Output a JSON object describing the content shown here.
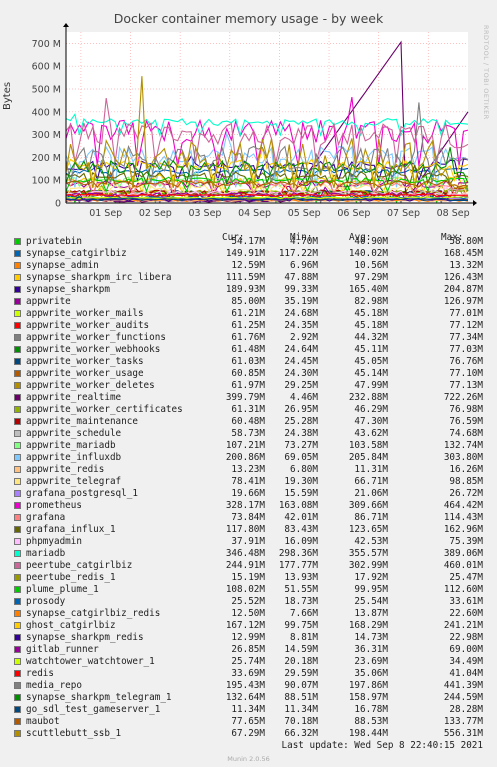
{
  "chart_data": {
    "type": "line",
    "title": "Docker container memory usage - by week",
    "ylabel": "Bytes",
    "ylim": [
      0,
      750000000
    ],
    "yticks": [
      "0",
      "100 M",
      "200 M",
      "300 M",
      "400 M",
      "500 M",
      "600 M",
      "700 M"
    ],
    "xticks": [
      "01 Sep",
      "02 Sep",
      "03 Sep",
      "04 Sep",
      "05 Sep",
      "06 Sep",
      "07 Sep",
      "08 Sep"
    ],
    "grid": true,
    "columns": [
      "Cur:",
      "Min:",
      "Avg:",
      "Max:"
    ],
    "series": [
      {
        "name": "privatebin",
        "color": "#00cc00",
        "cur": "54.17M",
        "min": "4.70M",
        "avg": "40.90M",
        "max": "58.80M"
      },
      {
        "name": "synapse_catgirlbiz",
        "color": "#0066b3",
        "cur": "149.91M",
        "min": "117.22M",
        "avg": "140.02M",
        "max": "168.45M"
      },
      {
        "name": "synapse_admin",
        "color": "#ff8000",
        "cur": "12.59M",
        "min": "6.96M",
        "avg": "10.56M",
        "max": "13.32M"
      },
      {
        "name": "synapse_sharkpm_irc_libera",
        "color": "#ffcc00",
        "cur": "111.59M",
        "min": "47.88M",
        "avg": "97.29M",
        "max": "126.43M"
      },
      {
        "name": "synapse_sharkpm",
        "color": "#330099",
        "cur": "189.93M",
        "min": "99.33M",
        "avg": "165.40M",
        "max": "204.87M"
      },
      {
        "name": "appwrite",
        "color": "#990099",
        "cur": "85.00M",
        "min": "35.19M",
        "avg": "82.98M",
        "max": "126.97M"
      },
      {
        "name": "appwrite_worker_mails",
        "color": "#ccff00",
        "cur": "61.21M",
        "min": "24.68M",
        "avg": "45.18M",
        "max": "77.01M"
      },
      {
        "name": "appwrite_worker_audits",
        "color": "#ff0000",
        "cur": "61.25M",
        "min": "24.35M",
        "avg": "45.18M",
        "max": "77.12M"
      },
      {
        "name": "appwrite_worker_functions",
        "color": "#808080",
        "cur": "61.76M",
        "min": "2.92M",
        "avg": "44.32M",
        "max": "77.34M"
      },
      {
        "name": "appwrite_worker_webhooks",
        "color": "#008f00",
        "cur": "61.48M",
        "min": "24.64M",
        "avg": "45.11M",
        "max": "77.03M"
      },
      {
        "name": "appwrite_worker_tasks",
        "color": "#00487d",
        "cur": "61.03M",
        "min": "24.45M",
        "avg": "45.05M",
        "max": "76.76M"
      },
      {
        "name": "appwrite_worker_usage",
        "color": "#b35a00",
        "cur": "60.85M",
        "min": "24.30M",
        "avg": "45.14M",
        "max": "77.10M"
      },
      {
        "name": "appwrite_worker_deletes",
        "color": "#b38f00",
        "cur": "61.97M",
        "min": "29.25M",
        "avg": "47.99M",
        "max": "77.13M"
      },
      {
        "name": "appwrite_realtime",
        "color": "#6b006b",
        "cur": "399.79M",
        "min": "4.46M",
        "avg": "232.88M",
        "max": "722.26M"
      },
      {
        "name": "appwrite_worker_certificates",
        "color": "#8fb300",
        "cur": "61.31M",
        "min": "26.95M",
        "avg": "46.29M",
        "max": "76.98M"
      },
      {
        "name": "appwrite_maintenance",
        "color": "#b30000",
        "cur": "60.48M",
        "min": "25.28M",
        "avg": "47.30M",
        "max": "76.59M"
      },
      {
        "name": "appwrite_schedule",
        "color": "#bebebe",
        "cur": "58.73M",
        "min": "24.38M",
        "avg": "43.62M",
        "max": "74.68M"
      },
      {
        "name": "appwrite_mariadb",
        "color": "#80ff80",
        "cur": "107.21M",
        "min": "73.27M",
        "avg": "103.58M",
        "max": "132.74M"
      },
      {
        "name": "appwrite_influxdb",
        "color": "#80c9ff",
        "cur": "200.86M",
        "min": "69.05M",
        "avg": "205.84M",
        "max": "303.80M"
      },
      {
        "name": "appwrite_redis",
        "color": "#ffc080",
        "cur": "13.23M",
        "min": "6.80M",
        "avg": "11.31M",
        "max": "16.26M"
      },
      {
        "name": "appwrite_telegraf",
        "color": "#ffe680",
        "cur": "78.41M",
        "min": "19.30M",
        "avg": "66.71M",
        "max": "98.85M"
      },
      {
        "name": "grafana_postgresql_1",
        "color": "#aa80ff",
        "cur": "19.66M",
        "min": "15.59M",
        "avg": "21.06M",
        "max": "26.72M"
      },
      {
        "name": "prometheus",
        "color": "#ee00cc",
        "cur": "328.17M",
        "min": "163.08M",
        "avg": "309.66M",
        "max": "464.42M"
      },
      {
        "name": "grafana",
        "color": "#ff8080",
        "cur": "73.84M",
        "min": "42.01M",
        "avg": "86.71M",
        "max": "114.43M"
      },
      {
        "name": "grafana_influx_1",
        "color": "#666600",
        "cur": "117.80M",
        "min": "83.43M",
        "avg": "123.65M",
        "max": "162.96M"
      },
      {
        "name": "phpmyadmin",
        "color": "#ffbfff",
        "cur": "37.91M",
        "min": "16.09M",
        "avg": "42.53M",
        "max": "75.39M"
      },
      {
        "name": "mariadb",
        "color": "#00ffcc",
        "cur": "346.48M",
        "min": "298.36M",
        "avg": "355.57M",
        "max": "389.06M"
      },
      {
        "name": "peertube_catgirlbiz",
        "color": "#cc6699",
        "cur": "244.91M",
        "min": "177.77M",
        "avg": "302.99M",
        "max": "460.01M"
      },
      {
        "name": "peertube_redis_1",
        "color": "#999900",
        "cur": "15.19M",
        "min": "13.93M",
        "avg": "17.92M",
        "max": "25.47M"
      },
      {
        "name": "plume_plume_1",
        "color": "#00cc00",
        "cur": "108.02M",
        "min": "51.55M",
        "avg": "99.95M",
        "max": "112.60M"
      },
      {
        "name": "prosody",
        "color": "#0066b3",
        "cur": "25.52M",
        "min": "18.73M",
        "avg": "25.54M",
        "max": "33.61M"
      },
      {
        "name": "synapse_catgirlbiz_redis",
        "color": "#ff8000",
        "cur": "12.50M",
        "min": "7.66M",
        "avg": "13.87M",
        "max": "22.60M"
      },
      {
        "name": "ghost_catgirlbiz",
        "color": "#ffcc00",
        "cur": "167.12M",
        "min": "99.75M",
        "avg": "168.29M",
        "max": "241.21M"
      },
      {
        "name": "synapse_sharkpm_redis",
        "color": "#330099",
        "cur": "12.99M",
        "min": "8.81M",
        "avg": "14.73M",
        "max": "22.98M"
      },
      {
        "name": "gitlab_runner",
        "color": "#990099",
        "cur": "26.85M",
        "min": "14.59M",
        "avg": "36.31M",
        "max": "69.00M"
      },
      {
        "name": "watchtower_watchtower_1",
        "color": "#ccff00",
        "cur": "25.74M",
        "min": "20.18M",
        "avg": "23.69M",
        "max": "34.49M"
      },
      {
        "name": "redis",
        "color": "#ff0000",
        "cur": "33.69M",
        "min": "29.59M",
        "avg": "35.06M",
        "max": "41.04M"
      },
      {
        "name": "media_repo",
        "color": "#808080",
        "cur": "195.43M",
        "min": "90.07M",
        "avg": "197.86M",
        "max": "441.39M"
      },
      {
        "name": "synapse_sharkpm_telegram_1",
        "color": "#008f00",
        "cur": "132.64M",
        "min": "88.51M",
        "avg": "158.97M",
        "max": "244.59M"
      },
      {
        "name": "go_sdl_test_gameserver_1",
        "color": "#00487d",
        "cur": "11.34M",
        "min": "11.34M",
        "avg": "16.78M",
        "max": "28.28M"
      },
      {
        "name": "maubot",
        "color": "#b35a00",
        "cur": "77.65M",
        "min": "70.18M",
        "avg": "88.53M",
        "max": "133.77M"
      },
      {
        "name": "scuttlebutt_ssb_1",
        "color": "#b38f00",
        "cur": "67.29M",
        "min": "66.32M",
        "avg": "198.44M",
        "max": "556.31M"
      }
    ]
  },
  "last_update": "Last update: Wed Sep  8 22:40:15 2021",
  "watermark": "RRDTOOL / TOBI OETIKER",
  "footer": "Munin 2.0.56"
}
